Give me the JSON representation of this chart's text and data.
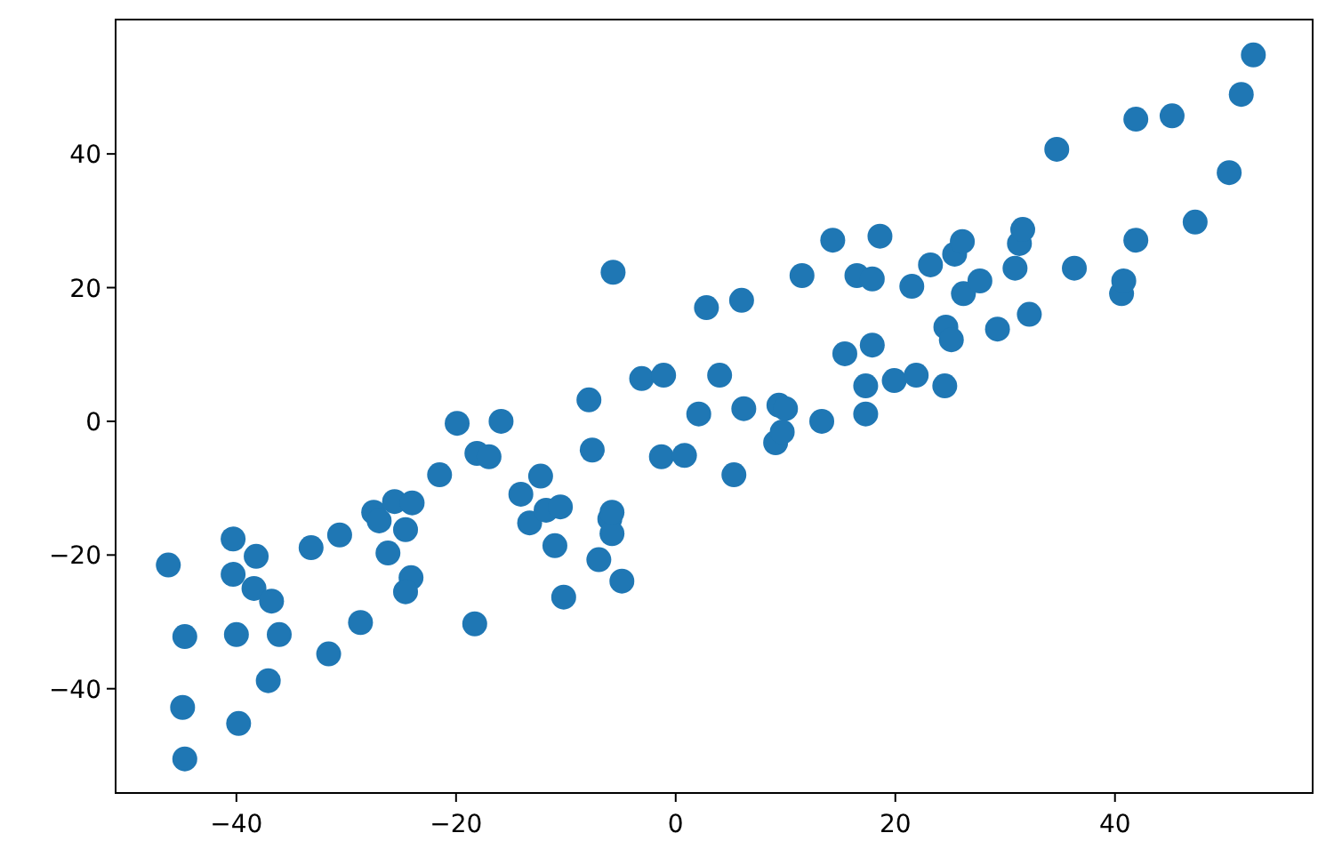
{
  "chart_data": {
    "type": "scatter",
    "xlim": [
      -51,
      58
    ],
    "ylim": [
      -55.6,
      60.1
    ],
    "xticks": [
      -40,
      -20,
      0,
      20,
      40
    ],
    "yticks": [
      -40,
      -20,
      0,
      20,
      40
    ],
    "grid": false,
    "marker": "circle",
    "series": [
      {
        "color": "#1f77b4",
        "x": [
          -46.2,
          -44.7,
          -44.9,
          -44.7,
          -40.3,
          -40.3,
          -40.0,
          -39.8,
          -38.2,
          -38.4,
          -36.8,
          -36.1,
          -37.1,
          -33.2,
          -31.6,
          -30.6,
          -28.7,
          -27.5,
          -27.0,
          -25.6,
          -24.0,
          -24.6,
          -26.2,
          -24.1,
          -24.6,
          -21.5,
          -19.9,
          -18.1,
          -17.0,
          -15.9,
          -14.1,
          -12.3,
          -13.3,
          -11.0,
          -18.3,
          -11.8,
          -10.5,
          -10.2,
          -7.9,
          -7.6,
          -7.0,
          -6.0,
          -5.8,
          -5.8,
          -4.9,
          -5.7,
          -3.1,
          -1.1,
          -1.3,
          0.8,
          2.1,
          2.8,
          4.0,
          5.3,
          6.0,
          6.2,
          9.1,
          9.4,
          9.7,
          10.0,
          11.5,
          13.3,
          14.3,
          15.4,
          16.5,
          17.3,
          17.3,
          17.9,
          17.9,
          18.6,
          19.9,
          21.5,
          21.9,
          23.2,
          24.5,
          24.6,
          25.1,
          25.4,
          26.1,
          26.2,
          27.7,
          29.3,
          30.9,
          31.3,
          31.6,
          32.2,
          34.7,
          36.3,
          40.6,
          40.8,
          41.9,
          41.9,
          45.2,
          47.3,
          50.4,
          51.5,
          52.6
        ],
        "values": [
          -21.5,
          -32.2,
          -42.8,
          -50.5,
          -17.6,
          -22.9,
          -31.9,
          -45.2,
          -20.2,
          -25.0,
          -26.9,
          -31.9,
          -38.8,
          -18.9,
          -34.8,
          -17.0,
          -30.1,
          -13.6,
          -14.9,
          -12.0,
          -12.2,
          -16.2,
          -19.7,
          -23.4,
          -25.5,
          -8.0,
          -0.3,
          -4.8,
          -5.3,
          0,
          -10.9,
          -8.2,
          -15.2,
          -18.6,
          -30.3,
          -13.3,
          -12.8,
          -26.3,
          3.2,
          -4.3,
          -20.7,
          -14.6,
          -16.8,
          -13.6,
          -23.9,
          22.3,
          6.4,
          6.9,
          -5.3,
          -5.1,
          1.1,
          17.0,
          6.9,
          -8.0,
          18.1,
          1.9,
          -3.2,
          2.4,
          -1.6,
          1.9,
          21.8,
          0,
          27.1,
          10.1,
          21.8,
          5.3,
          1.1,
          21.3,
          11.4,
          27.7,
          6.1,
          20.2,
          6.9,
          23.4,
          5.3,
          14.1,
          12.2,
          25.0,
          26.9,
          19.1,
          21.0,
          13.8,
          22.9,
          26.6,
          28.7,
          16.0,
          40.7,
          22.9,
          19.1,
          21.0,
          27.1,
          45.2,
          45.7,
          29.8,
          37.2,
          48.9,
          54.8
        ]
      }
    ]
  }
}
